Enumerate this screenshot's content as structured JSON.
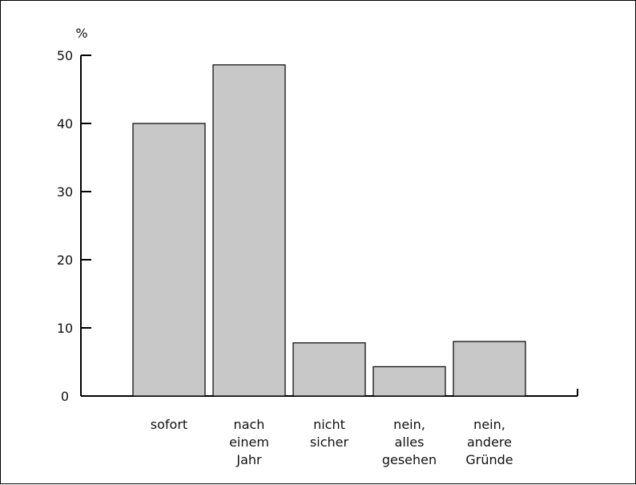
{
  "chart_data": {
    "type": "bar",
    "unit_label": "%",
    "categories": [
      [
        "sofort"
      ],
      [
        "nach",
        "einem",
        "Jahr"
      ],
      [
        "nicht",
        "sicher"
      ],
      [
        "nein,",
        "alles",
        "gesehen"
      ],
      [
        "nein,",
        "andere",
        "Gründe"
      ]
    ],
    "values": [
      40,
      48.6,
      7.8,
      4.3,
      8
    ],
    "ylim": [
      0,
      50
    ],
    "yticks": [
      "0",
      "10",
      "20",
      "30",
      "40",
      "50"
    ],
    "grid": false,
    "colors": {
      "bar_fill": "#c8c8c8",
      "bar_stroke": "#000000",
      "axis": "#000000"
    }
  }
}
